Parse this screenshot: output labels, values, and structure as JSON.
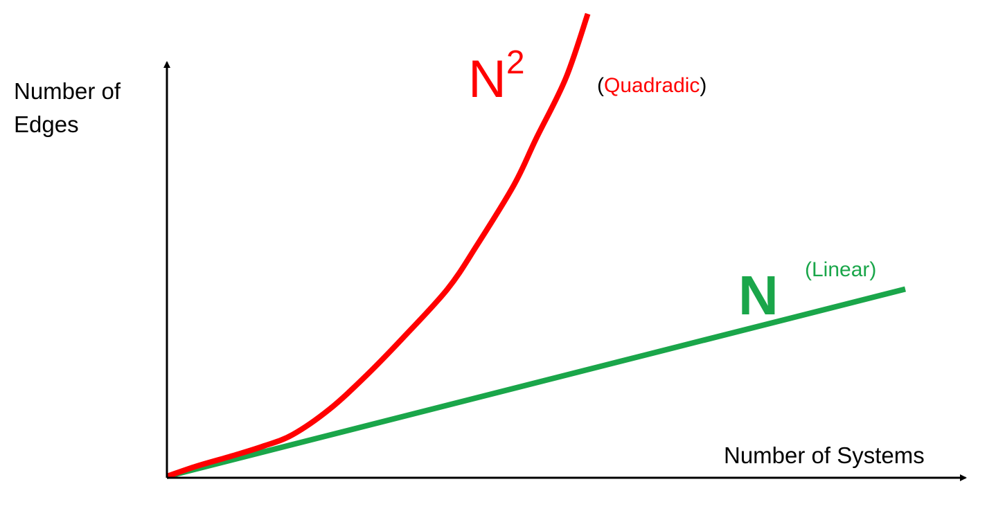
{
  "chart_data": {
    "type": "line",
    "xlabel": "Number of Systems",
    "ylabel": [
      "Number of",
      "Edges"
    ],
    "xlim": [
      0,
      1
    ],
    "ylim": [
      0,
      1
    ],
    "grid": false,
    "series": [
      {
        "name": "N",
        "note": "(Linear)",
        "color": "#1aa64a",
        "x": [
          0.0,
          1.0
        ],
        "y": [
          0.0,
          0.405
        ]
      },
      {
        "name": "N",
        "superscript": "2",
        "note_open": "(",
        "note": "Quadradic",
        "note_close": ")",
        "color": "#ff0000",
        "x": [
          0.0,
          0.04,
          0.09,
          0.13,
          0.17,
          0.22,
          0.27,
          0.32,
          0.38,
          0.42,
          0.47,
          0.5,
          0.54,
          0.57
        ],
        "y": [
          0.0,
          0.022,
          0.045,
          0.065,
          0.09,
          0.145,
          0.218,
          0.3,
          0.405,
          0.5,
          0.63,
          0.73,
          0.86,
          1.0
        ]
      }
    ]
  },
  "colors": {
    "axis": "#000000",
    "quadratic": "#ff0000",
    "linear": "#1aa64a"
  }
}
